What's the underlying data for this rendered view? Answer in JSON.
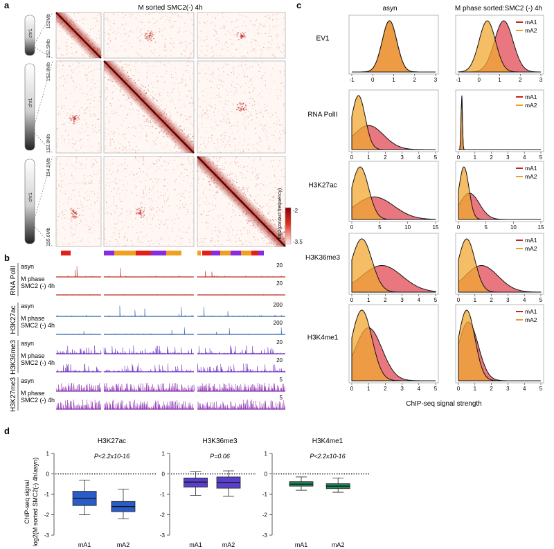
{
  "figure": {
    "panel_a": {
      "letter": "a",
      "title": "M sorted SMC2(-) 4h",
      "chromosome": "chr1",
      "blocks": [
        {
          "top": "152Mb",
          "bottom": "152.5Mb"
        },
        {
          "top": "152.8Mb",
          "bottom": "153.8Mb"
        },
        {
          "top": "154.0Mb",
          "bottom": "155.6Mb"
        }
      ],
      "colorbar": {
        "label": "log2(contact frequency)",
        "max": "-2",
        "min": "-3.5"
      }
    },
    "panel_b": {
      "letter": "b",
      "groups": [
        {
          "mark": "RNA PolII",
          "color": "#c0281f",
          "scale": "20",
          "tracks": [
            {
              "label": "asyn"
            },
            {
              "label": "M phase\nSMC2 (-) 4h"
            }
          ]
        },
        {
          "mark": "H3K27ac",
          "color": "#2d62a8",
          "scale": "200",
          "tracks": [
            {
              "label": "asyn"
            },
            {
              "label": "M phase\nSMC2 (-) 4h"
            }
          ]
        },
        {
          "mark": "H3K36me3",
          "color": "#6a2fc0",
          "scale": "20",
          "tracks": [
            {
              "label": "asyn"
            },
            {
              "label": "M phase\nSMC2 (-) 4h"
            }
          ]
        },
        {
          "mark": "H3K27me3",
          "color": "#8b2fb0",
          "scale": "5",
          "tracks": [
            {
              "label": "asyn"
            },
            {
              "label": "M phase\nSMC2 (-) 4h"
            }
          ]
        }
      ]
    },
    "panel_c": {
      "letter": "c",
      "col_titles": [
        "asyn",
        "M phase sorted:SMC2 (-) 4h"
      ],
      "xlabel": "ChIP-seq signal strength",
      "legend": [
        "mA1",
        "mA2"
      ],
      "colors": {
        "mA1": "#e04a55",
        "mA2": "#f0a733"
      }
    },
    "panel_d": {
      "letter": "d",
      "ylabel_line1": "ChIP-seq signal",
      "ylabel_line2": "log2(M sorted SMC2(-) 4h/asyn)"
    }
  },
  "chart_data": [
    {
      "type": "area",
      "title": "Density plots",
      "x_label": "ChIP-seq signal strength",
      "rows": [
        {
          "mark": "EV1",
          "xlim": [
            -1,
            3
          ],
          "xticks": [
            -1,
            0,
            1,
            2,
            3
          ],
          "asyn": {
            "mA1": {
              "mean": 0.8,
              "sd": 0.35
            },
            "mA2": {
              "mean": 0.8,
              "sd": 0.35
            }
          },
          "mphase": {
            "mA1": {
              "mean": 1.2,
              "sd": 0.45
            },
            "mA2": {
              "mean": 0.4,
              "sd": 0.4
            }
          }
        },
        {
          "mark": "RNA PolII",
          "xlim": [
            0,
            5
          ],
          "xticks": [
            0,
            1,
            2,
            3,
            4,
            5
          ],
          "asyn": {
            "mA1": {
              "mean": 1.0,
              "sd": 0.9
            },
            "mA2": {
              "mean": 0.4,
              "sd": 0.4
            }
          },
          "mphase": {
            "mA1": {
              "mean": 0.2,
              "sd": 0.04
            },
            "mA2": {
              "mean": 0.2,
              "sd": 0.04
            }
          }
        },
        {
          "mark": "H3K27ac",
          "xlim": [
            0,
            15
          ],
          "xticks": [
            0,
            5,
            10,
            15
          ],
          "asyn": {
            "mA1": {
              "mean": 4.0,
              "sd": 3.5
            },
            "mA2": {
              "mean": 1.5,
              "sd": 1.5
            }
          },
          "mphase": {
            "mA1": {
              "mean": 2.0,
              "sd": 1.8
            },
            "mA2": {
              "mean": 1.0,
              "sd": 0.9
            }
          }
        },
        {
          "mark": "H3K36me3",
          "xlim": [
            0,
            5
          ],
          "xticks": [
            0,
            1,
            2,
            3,
            4,
            5
          ],
          "asyn": {
            "mA1": {
              "mean": 1.8,
              "sd": 1.2
            },
            "mA2": {
              "mean": 0.6,
              "sd": 0.6
            }
          },
          "mphase": {
            "mA1": {
              "mean": 1.4,
              "sd": 1.0
            },
            "mA2": {
              "mean": 0.5,
              "sd": 0.5
            }
          }
        },
        {
          "mark": "H3K4me1",
          "xlim": [
            0,
            5
          ],
          "xticks": [
            0,
            1,
            2,
            3,
            4,
            5
          ],
          "asyn": {
            "mA1": {
              "mean": 1.0,
              "sd": 0.8
            },
            "mA2": {
              "mean": 0.6,
              "sd": 0.6
            }
          },
          "mphase": {
            "mA1": {
              "mean": 0.6,
              "sd": 0.6
            },
            "mA2": {
              "mean": 0.5,
              "sd": 0.5
            }
          }
        }
      ]
    },
    {
      "type": "box",
      "ylim": [
        -3,
        1
      ],
      "yticks": [
        -3,
        -2,
        -1,
        0,
        1
      ],
      "categories": [
        "mA1",
        "mA2"
      ],
      "panels": [
        {
          "title": "H3K27ac",
          "pvalue": "P<2.2x10-16",
          "color": "#2a5cc8",
          "boxes": [
            {
              "min": -2.0,
              "q1": -1.55,
              "median": -1.2,
              "q3": -0.85,
              "max": -0.3
            },
            {
              "min": -2.2,
              "q1": -1.85,
              "median": -1.6,
              "q3": -1.35,
              "max": -0.75
            }
          ]
        },
        {
          "title": "H3K36me3",
          "pvalue": "P=0.06",
          "color": "#5a3fc9",
          "boxes": [
            {
              "min": -1.05,
              "q1": -0.65,
              "median": -0.4,
              "q3": -0.2,
              "max": 0.1
            },
            {
              "min": -1.1,
              "q1": -0.7,
              "median": -0.42,
              "q3": -0.15,
              "max": 0.15
            }
          ]
        },
        {
          "title": "H3K4me1",
          "pvalue": "P<2.2x10-16",
          "color": "#1f8a5a",
          "boxes": [
            {
              "min": -0.8,
              "q1": -0.6,
              "median": -0.5,
              "q3": -0.38,
              "max": -0.15
            },
            {
              "min": -0.9,
              "q1": -0.72,
              "median": -0.6,
              "q3": -0.48,
              "max": -0.2
            }
          ]
        }
      ]
    }
  ]
}
